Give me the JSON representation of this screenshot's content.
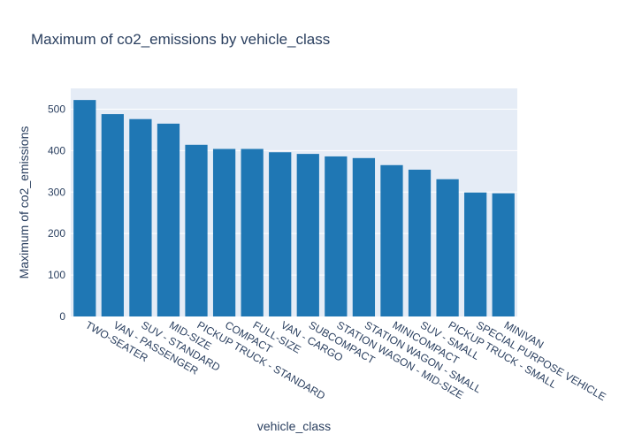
{
  "chart_data": {
    "type": "bar",
    "title": "Maximum of co2_emissions by vehicle_class",
    "xlabel": "vehicle_class",
    "ylabel": "Maximum of co2_emissions",
    "categories": [
      "TWO-SEATER",
      "VAN - PASSENGER",
      "SUV - STANDARD",
      "MID-SIZE",
      "PICKUP TRUCK - STANDARD",
      "COMPACT",
      "FULL-SIZE",
      "VAN - CARGO",
      "SUBCOMPACT",
      "STATION WAGON - MID-SIZE",
      "STATION WAGON - SMALL",
      "MINICOMPACT",
      "SUV - SMALL",
      "PICKUP TRUCK - SMALL",
      "SPECIAL PURPOSE VEHICLE",
      "MINIVAN"
    ],
    "values": [
      522,
      488,
      476,
      465,
      414,
      404,
      404,
      396,
      392,
      386,
      382,
      365,
      354,
      331,
      299,
      297
    ],
    "ylim": [
      0,
      550
    ],
    "yticks": [
      0,
      100,
      200,
      300,
      400,
      500
    ],
    "grid": true,
    "colors": {
      "bar": "#1f77b4",
      "plot_bg": "#e5ecf6",
      "grid": "#ffffff",
      "text": "#2a3f5f"
    }
  }
}
